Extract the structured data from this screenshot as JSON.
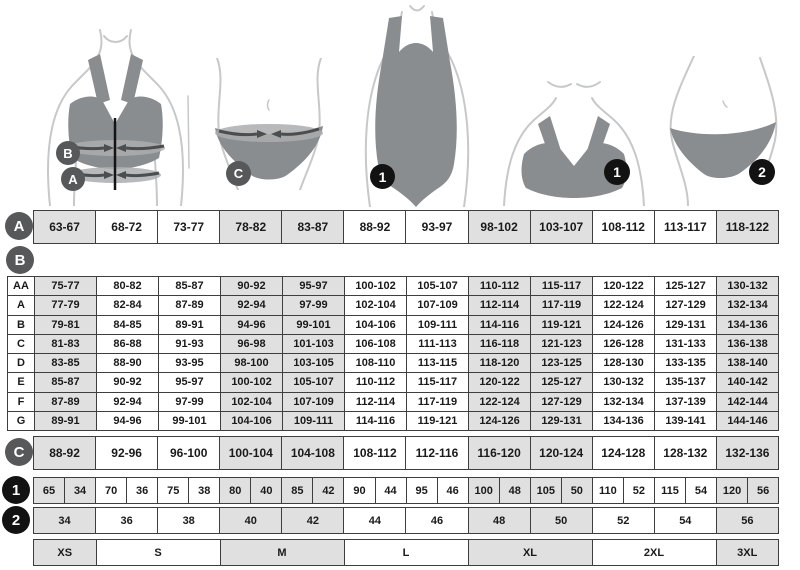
{
  "badges": {
    "a": "A",
    "b": "B",
    "c": "C",
    "one": "1",
    "two": "2"
  },
  "sizes_summary": [
    "XS",
    "S",
    "M",
    "L",
    "XL",
    "2XL",
    "3XL"
  ],
  "palette": {
    "cell_shaded": "#e0e0e0",
    "cell_white": "#ffffff",
    "grid_border": "#3e3e3e",
    "badge_gray": "#56585a",
    "badge_black": "#121212",
    "garment_gray": "#8a8d90",
    "band_gray": "#aaadaf",
    "arrow_dark": "#4b4e50",
    "outline_gray": "#c6c8ca"
  },
  "layout": {
    "shade12": [
      1,
      0,
      0,
      1,
      1,
      0,
      0,
      1,
      1,
      0,
      0,
      1
    ]
  },
  "chart_data": [
    {
      "type": "table",
      "id": "row_a",
      "badge": "A",
      "values": [
        "63-67",
        "68-72",
        "73-77",
        "78-82",
        "83-87",
        "88-92",
        "93-97",
        "98-102",
        "103-107",
        "108-112",
        "113-117",
        "118-122"
      ]
    },
    {
      "type": "table",
      "id": "table_b",
      "badge": "B",
      "row_labels": [
        "AA",
        "A",
        "B",
        "C",
        "D",
        "E",
        "F",
        "G"
      ],
      "rows": [
        [
          "75-77",
          "80-82",
          "85-87",
          "90-92",
          "95-97",
          "100-102",
          "105-107",
          "110-112",
          "115-117",
          "120-122",
          "125-127",
          "130-132"
        ],
        [
          "77-79",
          "82-84",
          "87-89",
          "92-94",
          "97-99",
          "102-104",
          "107-109",
          "112-114",
          "117-119",
          "122-124",
          "127-129",
          "132-134"
        ],
        [
          "79-81",
          "84-85",
          "89-91",
          "94-96",
          "99-101",
          "104-106",
          "109-111",
          "114-116",
          "119-121",
          "124-126",
          "129-131",
          "134-136"
        ],
        [
          "81-83",
          "86-88",
          "91-93",
          "96-98",
          "101-103",
          "106-108",
          "111-113",
          "116-118",
          "121-123",
          "126-128",
          "131-133",
          "136-138"
        ],
        [
          "83-85",
          "88-90",
          "93-95",
          "98-100",
          "103-105",
          "108-110",
          "113-115",
          "118-120",
          "123-125",
          "128-130",
          "133-135",
          "138-140"
        ],
        [
          "85-87",
          "90-92",
          "95-97",
          "100-102",
          "105-107",
          "110-112",
          "115-117",
          "120-122",
          "125-127",
          "130-132",
          "135-137",
          "140-142"
        ],
        [
          "87-89",
          "92-94",
          "97-99",
          "102-104",
          "107-109",
          "112-114",
          "117-119",
          "122-124",
          "127-129",
          "132-134",
          "137-139",
          "142-144"
        ],
        [
          "89-91",
          "94-96",
          "99-101",
          "104-106",
          "109-111",
          "114-116",
          "119-121",
          "124-126",
          "129-131",
          "134-136",
          "139-141",
          "144-146"
        ]
      ]
    },
    {
      "type": "table",
      "id": "row_c",
      "badge": "C",
      "values": [
        "88-92",
        "92-96",
        "96-100",
        "100-104",
        "104-108",
        "108-112",
        "112-116",
        "116-120",
        "120-124",
        "124-128",
        "128-132",
        "132-136"
      ]
    },
    {
      "type": "table",
      "id": "row_1",
      "badge": "1",
      "values": [
        "65",
        "34",
        "70",
        "36",
        "75",
        "38",
        "80",
        "40",
        "85",
        "42",
        "90",
        "44",
        "95",
        "46",
        "100",
        "48",
        "105",
        "50",
        "110",
        "52",
        "115",
        "54",
        "120",
        "56"
      ]
    },
    {
      "type": "table",
      "id": "row_2",
      "badge": "2",
      "values": [
        "34",
        "36",
        "38",
        "40",
        "42",
        "44",
        "46",
        "48",
        "50",
        "52",
        "54",
        "56"
      ]
    },
    {
      "type": "table",
      "id": "row_sizes",
      "values": [
        "XS",
        "S",
        "M",
        "L",
        "XL",
        "2XL",
        "3XL"
      ],
      "spans": [
        1,
        2,
        2,
        2,
        2,
        2,
        1
      ],
      "shade": [
        1,
        0,
        1,
        0,
        1,
        0,
        1
      ]
    }
  ]
}
